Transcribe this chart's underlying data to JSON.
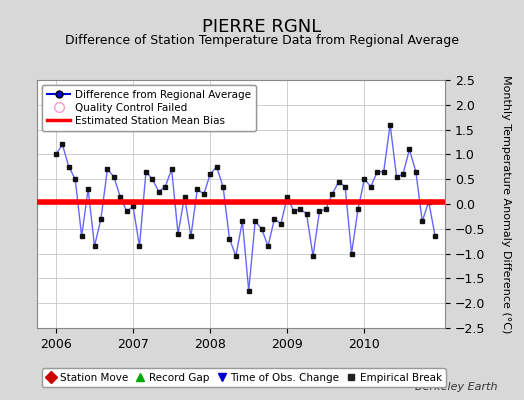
{
  "title": "PIERRE RGNL",
  "subtitle": "Difference of Station Temperature Data from Regional Average",
  "ylabel": "Monthly Temperature Anomaly Difference (°C)",
  "watermark": "Berkeley Earth",
  "ylim": [
    -2.5,
    2.5
  ],
  "xlim_start": 2005.75,
  "xlim_end": 2011.05,
  "bias_line_y": 0.04,
  "line_color": "#6666ff",
  "marker_color": "#111111",
  "bias_color": "#ff0000",
  "background_color": "#d8d8d8",
  "plot_background": "#ffffff",
  "x_values": [
    2006.0,
    2006.083,
    2006.167,
    2006.25,
    2006.333,
    2006.417,
    2006.5,
    2006.583,
    2006.667,
    2006.75,
    2006.833,
    2006.917,
    2007.0,
    2007.083,
    2007.167,
    2007.25,
    2007.333,
    2007.417,
    2007.5,
    2007.583,
    2007.667,
    2007.75,
    2007.833,
    2007.917,
    2008.0,
    2008.083,
    2008.167,
    2008.25,
    2008.333,
    2008.417,
    2008.5,
    2008.583,
    2008.667,
    2008.75,
    2008.833,
    2008.917,
    2009.0,
    2009.083,
    2009.167,
    2009.25,
    2009.333,
    2009.417,
    2009.5,
    2009.583,
    2009.667,
    2009.75,
    2009.833,
    2009.917,
    2010.0,
    2010.083,
    2010.167,
    2010.25,
    2010.333,
    2010.417,
    2010.5,
    2010.583,
    2010.667,
    2010.75,
    2010.833,
    2010.917
  ],
  "y_values": [
    1.0,
    1.2,
    0.75,
    0.5,
    -0.65,
    0.3,
    -0.85,
    -0.3,
    0.7,
    0.55,
    0.15,
    -0.15,
    -0.05,
    -0.85,
    0.65,
    0.5,
    0.25,
    0.35,
    0.7,
    -0.6,
    0.15,
    -0.65,
    0.3,
    0.2,
    0.6,
    0.75,
    0.35,
    -0.7,
    -1.05,
    -0.35,
    -1.75,
    -0.35,
    -0.5,
    -0.85,
    -0.3,
    -0.4,
    0.15,
    -0.15,
    -0.1,
    -0.2,
    -1.05,
    -0.15,
    -0.1,
    0.2,
    0.45,
    0.35,
    -1.0,
    -0.1,
    0.5,
    0.35,
    0.65,
    0.65,
    1.6,
    0.55,
    0.6,
    1.1,
    0.65,
    -0.35,
    0.05,
    -0.65
  ],
  "xticks": [
    2006,
    2007,
    2008,
    2009,
    2010
  ],
  "yticks": [
    -2.5,
    -2.0,
    -1.5,
    -1.0,
    -0.5,
    0.0,
    0.5,
    1.0,
    1.5,
    2.0,
    2.5
  ],
  "grid_color": "#c8c8c8",
  "title_fontsize": 13,
  "subtitle_fontsize": 9,
  "tick_fontsize": 9,
  "ylabel_fontsize": 8
}
